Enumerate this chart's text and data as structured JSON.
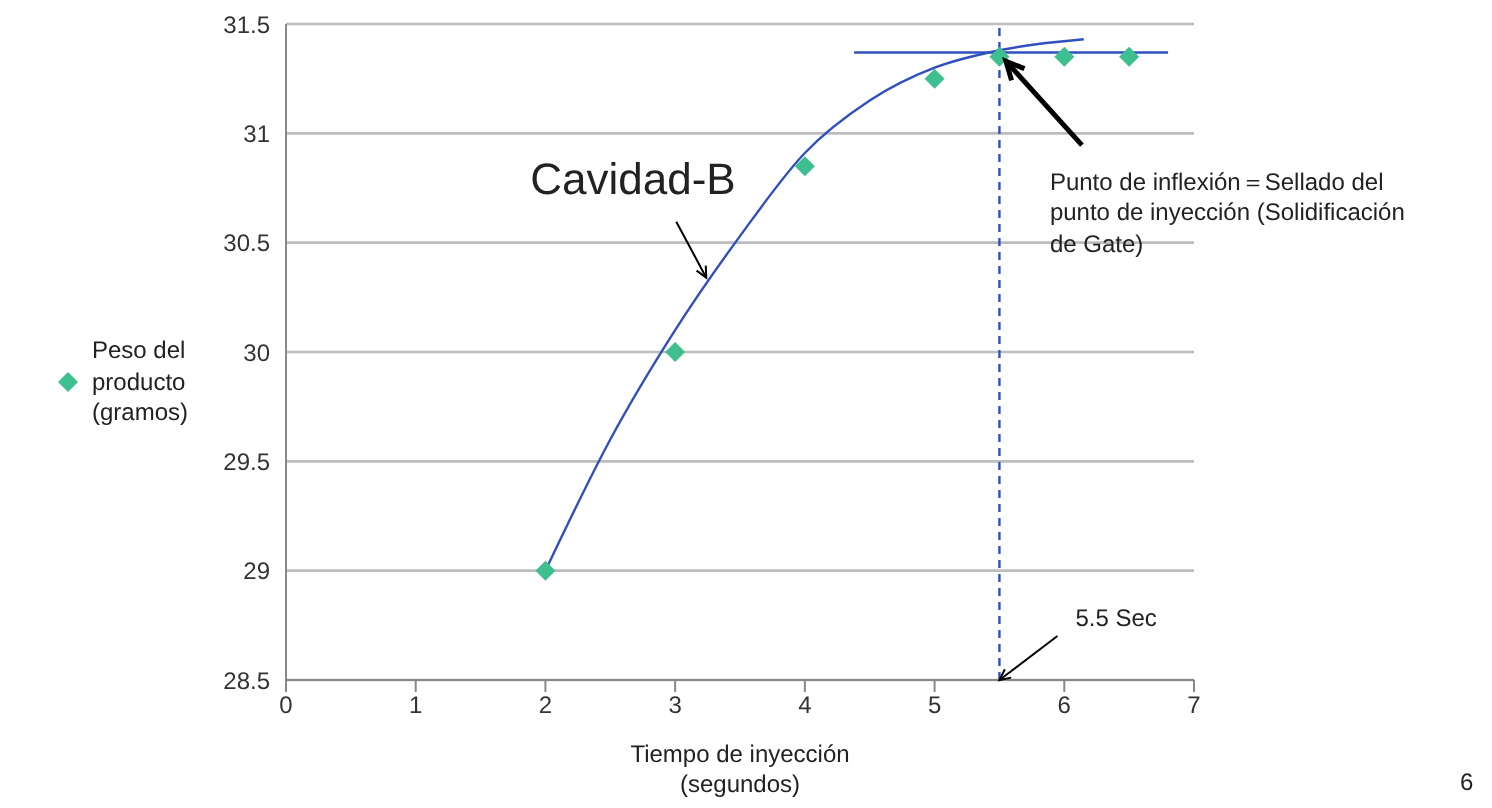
{
  "chart_data": {
    "type": "scatter",
    "xlabel": "Tiempo de inyección (segundos)",
    "xlim": [
      0,
      7
    ],
    "xticks": [
      0,
      1,
      2,
      3,
      4,
      5,
      6,
      7
    ],
    "ylim": [
      28.5,
      31.5
    ],
    "yticks": [
      28.5,
      29,
      29.5,
      30,
      30.5,
      31,
      31.5
    ],
    "grid": "y",
    "legend": "left",
    "series": [
      {
        "name": "Peso del producto (gramos)",
        "marker": "diamond",
        "color": "#3dbf90",
        "x": [
          2,
          3,
          4,
          5,
          5.5,
          6,
          6.5
        ],
        "values": [
          29,
          30,
          30.85,
          31.25,
          31.35,
          31.35,
          31.35
        ]
      },
      {
        "type": "line",
        "color": "#3050c0",
        "x": [
          2,
          2.5,
          3,
          3.5,
          4,
          4.5,
          5,
          5.5,
          6.15
        ],
        "values": [
          29,
          29.6,
          30.1,
          30.53,
          30.91,
          31.15,
          31.3,
          31.38,
          31.43
        ]
      },
      {
        "type": "line",
        "color": "#3050c0",
        "x": [
          4.38,
          6.8
        ],
        "values": [
          31.37,
          31.37
        ]
      }
    ],
    "ref_lines": [
      {
        "axis": "x",
        "value": 5.5,
        "color": "#3050c0",
        "line_style": "dashed"
      }
    ],
    "annotations": [
      {
        "text": "Cavidad-B",
        "x": 3.24,
        "y": 30.34
      },
      {
        "text": "Punto de inflexión＝Sellado del punto de inyección (Solidificación de Gate)",
        "x": 5.55,
        "y": 31.33
      },
      {
        "text": "5.5 Sec",
        "x": 5.5,
        "y": 28.5
      },
      "6"
    ]
  }
}
